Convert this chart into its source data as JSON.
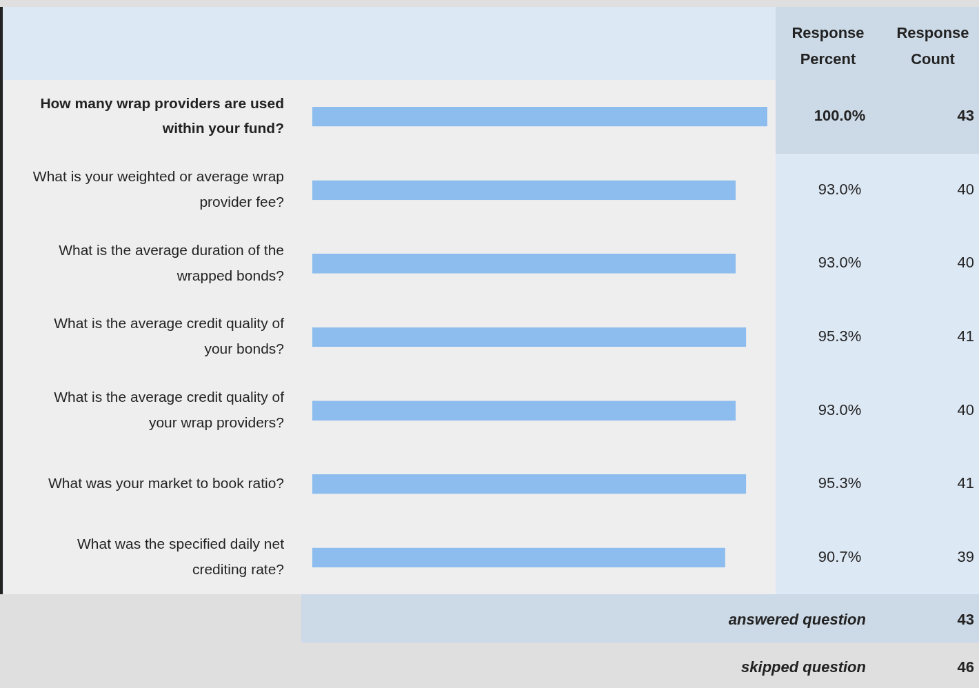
{
  "chart_data": {
    "type": "bar",
    "orientation": "horizontal",
    "categories": [
      "How many wrap providers are used within your fund?",
      "What is your weighted or average wrap provider fee?",
      "What is the average duration of the wrapped bonds?",
      "What is the average credit quality of your bonds?",
      "What is the average credit quality of your wrap providers?",
      "What was your market to book ratio?",
      "What was the specified daily net crediting rate?"
    ],
    "values": [
      100.0,
      93.0,
      93.0,
      95.3,
      93.0,
      95.3,
      90.7
    ],
    "value_labels": [
      "100.0%",
      "93.0%",
      "93.0%",
      "95.3%",
      "93.0%",
      "95.3%",
      "90.7%"
    ],
    "color": "#8dbdee",
    "xlim": [
      0,
      100
    ],
    "tick_labels": "y",
    "legend": false,
    "annotations": [
      "Response Percent",
      "Response Count",
      "43",
      "40",
      "40",
      "41",
      "40",
      "41",
      "39",
      "answered question",
      "43",
      "skipped question",
      "46"
    ]
  }
}
